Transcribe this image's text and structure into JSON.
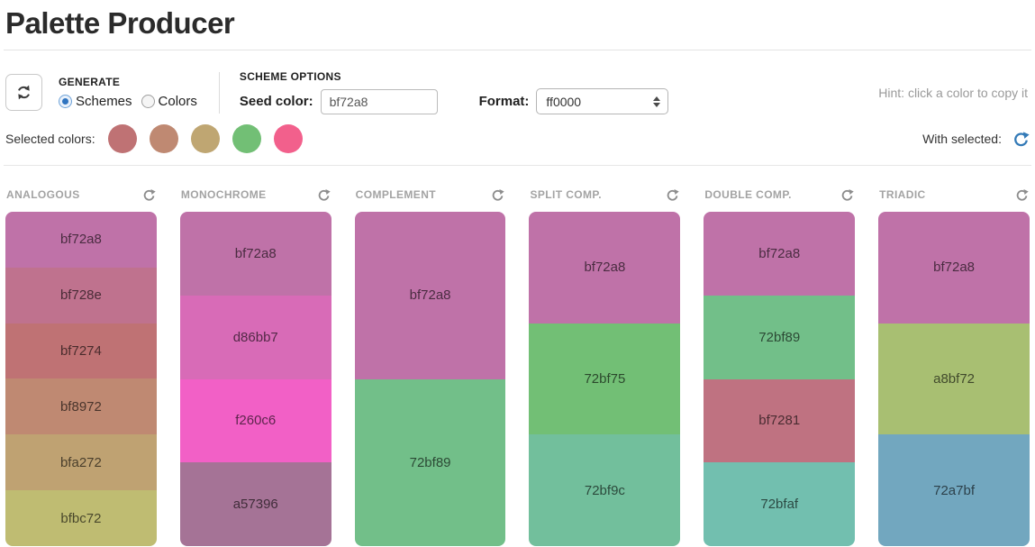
{
  "page": {
    "title": "Palette Producer"
  },
  "toolbar": {
    "refresh_icon": "refresh-icon",
    "generate": {
      "label": "GENERATE",
      "options": [
        {
          "label": "Schemes",
          "selected": true
        },
        {
          "label": "Colors",
          "selected": false
        }
      ]
    },
    "scheme_options": {
      "label": "SCHEME OPTIONS",
      "seed_label": "Seed color:",
      "seed_value": "bf72a8",
      "format_label": "Format:",
      "format_value": "ff0000"
    },
    "hint": "Hint: click a color to copy it"
  },
  "selected_colors": {
    "label": "Selected colors:",
    "colors": [
      "#bf7274",
      "#bf8972",
      "#bfa672",
      "#72bf75",
      "#f2608c"
    ],
    "with_selected_label": "With selected:"
  },
  "schemes": [
    {
      "name": "ANALOGOUS",
      "swatches": [
        "bf72a8",
        "bf728e",
        "bf7274",
        "bf8972",
        "bfa272",
        "bfbc72"
      ]
    },
    {
      "name": "MONOCHROME",
      "swatches": [
        "bf72a8",
        "d86bb7",
        "f260c6",
        "a57396"
      ]
    },
    {
      "name": "COMPLEMENT",
      "swatches": [
        "bf72a8",
        "72bf89"
      ]
    },
    {
      "name": "SPLIT COMP.",
      "swatches": [
        "bf72a8",
        "72bf75",
        "72bf9c"
      ]
    },
    {
      "name": "DOUBLE COMP.",
      "swatches": [
        "bf72a8",
        "72bf89",
        "bf7281",
        "72bfaf"
      ]
    },
    {
      "name": "TRIADIC",
      "swatches": [
        "bf72a8",
        "a8bf72",
        "72a7bf"
      ]
    }
  ],
  "colors": {
    "accent_blue": "#337ab7",
    "header_gray": "#a3a3a3",
    "hint_gray": "#9a9a9a",
    "swatch_text": "rgba(0,0,0,0.62)"
  }
}
